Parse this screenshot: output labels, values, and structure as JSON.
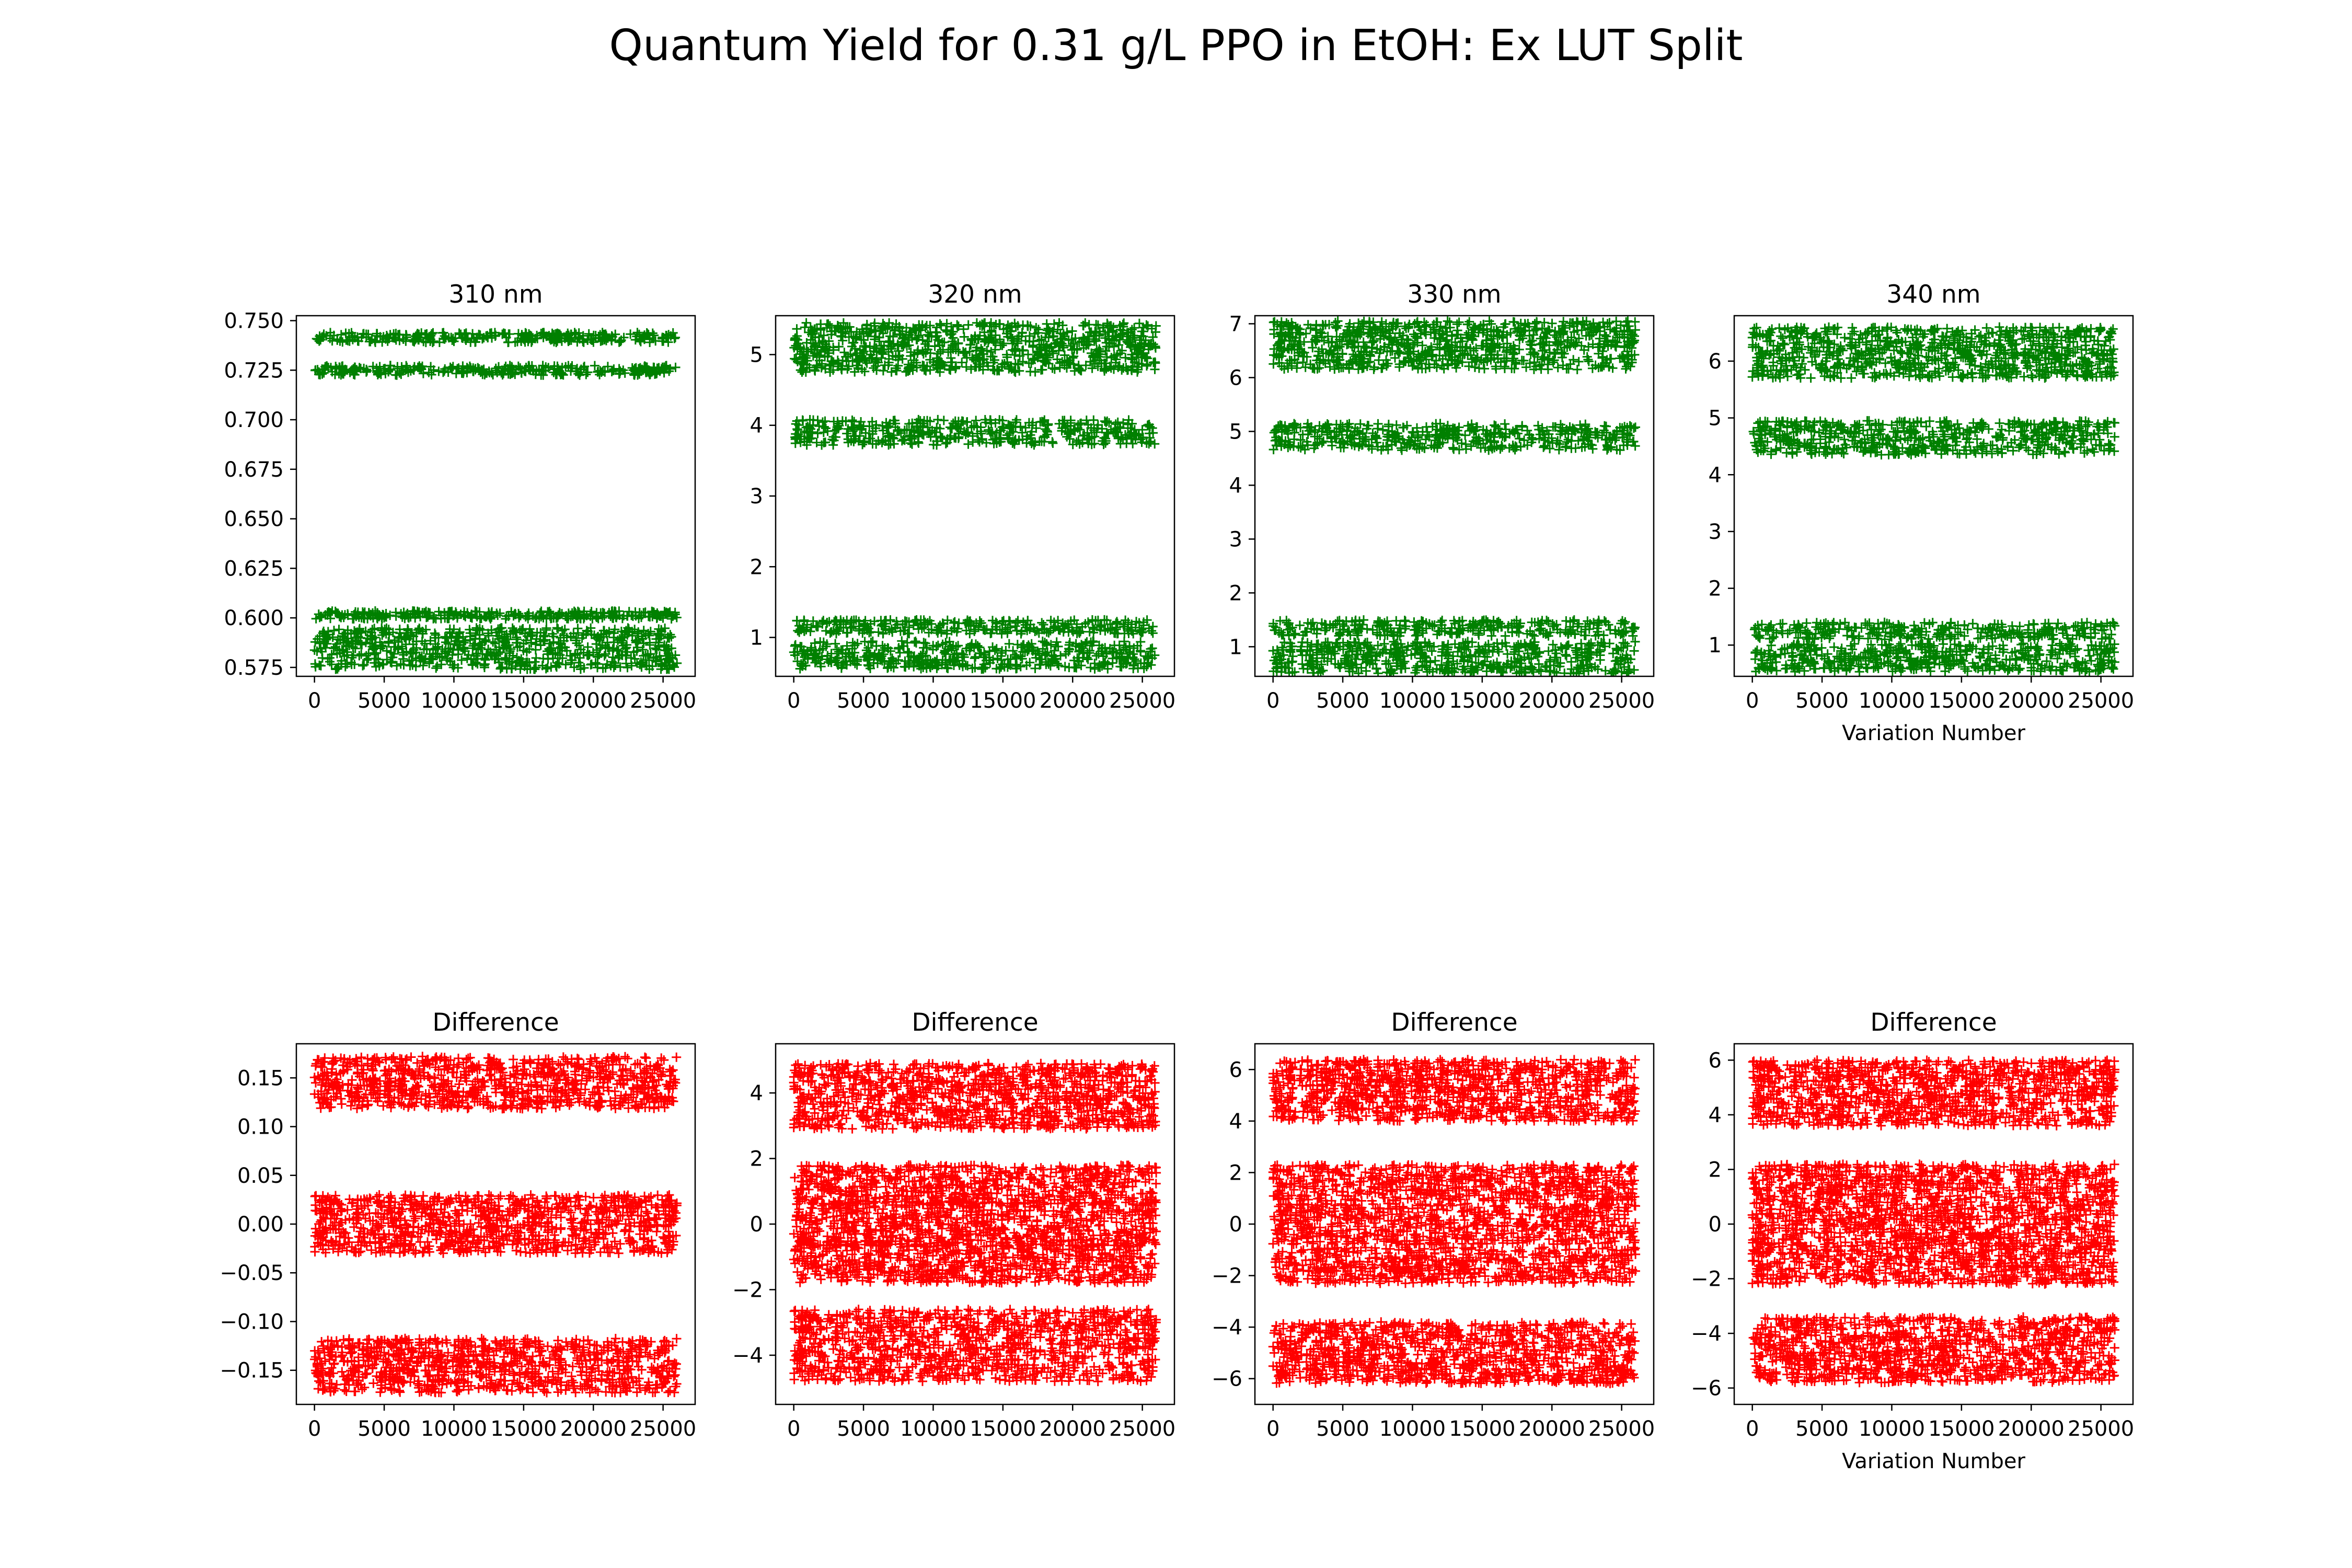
{
  "figure": {
    "title": "Quantum Yield for 0.31 g/L PPO in EtOH: Ex LUT Split"
  },
  "colors": {
    "yield": "#008000",
    "difference": "#ff0000",
    "axes": "#000000"
  },
  "chart_data": [
    {
      "type": "scatter",
      "marker": "+",
      "color": "#008000",
      "title": "310 nm",
      "xlabel": "",
      "ylabel": "",
      "xlim": [
        -1300,
        27300
      ],
      "ylim": [
        0.5705,
        0.7525
      ],
      "xticks": [
        0,
        5000,
        10000,
        15000,
        20000,
        25000
      ],
      "xtick_labels": [
        "0",
        "5000",
        "10000",
        "15000",
        "20000",
        "25000"
      ],
      "yticks": [
        0.575,
        0.6,
        0.625,
        0.65,
        0.675,
        0.7,
        0.725,
        0.75
      ],
      "ytick_labels": [
        "0.575",
        "0.600",
        "0.625",
        "0.650",
        "0.675",
        "0.700",
        "0.725",
        "0.750"
      ],
      "x_range": [
        0,
        26000
      ],
      "bands": [
        {
          "center": 0.7415,
          "half_width": 0.0025
        },
        {
          "center": 0.725,
          "half_width": 0.0025
        },
        {
          "center": 0.6015,
          "half_width": 0.002
        },
        {
          "center": 0.5845,
          "half_width": 0.0105
        }
      ]
    },
    {
      "type": "scatter",
      "marker": "+",
      "color": "#008000",
      "title": "320 nm",
      "xlabel": "",
      "ylabel": "",
      "xlim": [
        -1300,
        27300
      ],
      "ylim": [
        0.45,
        5.55
      ],
      "xticks": [
        0,
        5000,
        10000,
        15000,
        20000,
        25000
      ],
      "xtick_labels": [
        "0",
        "5000",
        "10000",
        "15000",
        "20000",
        "25000"
      ],
      "yticks": [
        1,
        2,
        3,
        4,
        5
      ],
      "ytick_labels": [
        "1",
        "2",
        "3",
        "4",
        "5"
      ],
      "x_range": [
        0,
        26000
      ],
      "bands": [
        {
          "center": 5.1,
          "half_width": 0.35
        },
        {
          "center": 3.9,
          "half_width": 0.18
        },
        {
          "center": 1.15,
          "half_width": 0.1
        },
        {
          "center": 0.75,
          "half_width": 0.2
        }
      ]
    },
    {
      "type": "scatter",
      "marker": "+",
      "color": "#008000",
      "title": "330 nm",
      "xlabel": "",
      "ylabel": "",
      "xlim": [
        -1300,
        27300
      ],
      "ylim": [
        0.45,
        7.15
      ],
      "xticks": [
        0,
        5000,
        10000,
        15000,
        20000,
        25000
      ],
      "xtick_labels": [
        "0",
        "5000",
        "10000",
        "15000",
        "20000",
        "25000"
      ],
      "yticks": [
        1,
        2,
        3,
        4,
        5,
        6,
        7
      ],
      "ytick_labels": [
        "1",
        "2",
        "3",
        "4",
        "5",
        "6",
        "7"
      ],
      "x_range": [
        0,
        26000
      ],
      "bands": [
        {
          "center": 6.6,
          "half_width": 0.45
        },
        {
          "center": 4.9,
          "half_width": 0.25
        },
        {
          "center": 1.35,
          "half_width": 0.15
        },
        {
          "center": 0.8,
          "half_width": 0.3
        }
      ]
    },
    {
      "type": "scatter",
      "marker": "+",
      "color": "#008000",
      "title": "340 nm",
      "xlabel": "Variation Number",
      "ylabel": "",
      "xlim": [
        -1300,
        27300
      ],
      "ylim": [
        0.45,
        6.8
      ],
      "xticks": [
        0,
        5000,
        10000,
        15000,
        20000,
        25000
      ],
      "xtick_labels": [
        "0",
        "5000",
        "10000",
        "15000",
        "20000",
        "25000"
      ],
      "yticks": [
        1,
        2,
        3,
        4,
        5,
        6
      ],
      "ytick_labels": [
        "1",
        "2",
        "3",
        "4",
        "5",
        "6"
      ],
      "x_range": [
        0,
        26000
      ],
      "bands": [
        {
          "center": 6.15,
          "half_width": 0.45
        },
        {
          "center": 4.65,
          "half_width": 0.3
        },
        {
          "center": 1.25,
          "half_width": 0.15
        },
        {
          "center": 0.78,
          "half_width": 0.25
        }
      ]
    },
    {
      "type": "scatter",
      "marker": "+",
      "color": "#ff0000",
      "title": "Difference",
      "xlabel": "",
      "ylabel": "",
      "xlim": [
        -1300,
        27300
      ],
      "ylim": [
        -0.185,
        0.185
      ],
      "xticks": [
        0,
        5000,
        10000,
        15000,
        20000,
        25000
      ],
      "xtick_labels": [
        "0",
        "5000",
        "10000",
        "15000",
        "20000",
        "25000"
      ],
      "yticks": [
        -0.15,
        -0.1,
        -0.05,
        0,
        0.05,
        0.1,
        0.15
      ],
      "ytick_labels": [
        "−0.15",
        "−0.10",
        "−0.05",
        "0.00",
        "0.05",
        "0.10",
        "0.15"
      ],
      "x_range": [
        0,
        26000
      ],
      "bands": [
        {
          "center": 0.145,
          "half_width": 0.027
        },
        {
          "center": 0.0,
          "half_width": 0.03
        },
        {
          "center": -0.145,
          "half_width": 0.028
        }
      ]
    },
    {
      "type": "scatter",
      "marker": "+",
      "color": "#ff0000",
      "title": "Difference",
      "xlabel": "",
      "ylabel": "",
      "xlim": [
        -1300,
        27300
      ],
      "ylim": [
        -5.5,
        5.5
      ],
      "xticks": [
        0,
        5000,
        10000,
        15000,
        20000,
        25000
      ],
      "xtick_labels": [
        "0",
        "5000",
        "10000",
        "15000",
        "20000",
        "25000"
      ],
      "yticks": [
        -4,
        -2,
        0,
        2,
        4
      ],
      "ytick_labels": [
        "−4",
        "−2",
        "0",
        "2",
        "4"
      ],
      "x_range": [
        0,
        26000
      ],
      "bands": [
        {
          "center": 3.9,
          "half_width": 1.0
        },
        {
          "center": 1.2,
          "half_width": 0.6
        },
        {
          "center": 0.0,
          "half_width": 0.7
        },
        {
          "center": -1.2,
          "half_width": 0.6
        },
        {
          "center": -3.7,
          "half_width": 1.1
        }
      ]
    },
    {
      "type": "scatter",
      "marker": "+",
      "color": "#ff0000",
      "title": "Difference",
      "xlabel": "",
      "ylabel": "",
      "xlim": [
        -1300,
        27300
      ],
      "ylim": [
        -7.0,
        7.0
      ],
      "xticks": [
        0,
        5000,
        10000,
        15000,
        20000,
        25000
      ],
      "xtick_labels": [
        "0",
        "5000",
        "10000",
        "15000",
        "20000",
        "25000"
      ],
      "yticks": [
        -6,
        -4,
        -2,
        0,
        2,
        4,
        6
      ],
      "ytick_labels": [
        "−6",
        "−4",
        "−2",
        "0",
        "2",
        "4",
        "6"
      ],
      "x_range": [
        0,
        26000
      ],
      "bands": [
        {
          "center": 5.2,
          "half_width": 1.2
        },
        {
          "center": 1.6,
          "half_width": 0.7
        },
        {
          "center": 0.0,
          "half_width": 0.8
        },
        {
          "center": -1.6,
          "half_width": 0.7
        },
        {
          "center": -5.0,
          "half_width": 1.2
        }
      ]
    },
    {
      "type": "scatter",
      "marker": "+",
      "color": "#ff0000",
      "title": "Difference",
      "xlabel": "Variation Number",
      "ylabel": "",
      "xlim": [
        -1300,
        27300
      ],
      "ylim": [
        -6.6,
        6.6
      ],
      "xticks": [
        0,
        5000,
        10000,
        15000,
        20000,
        25000
      ],
      "xtick_labels": [
        "0",
        "5000",
        "10000",
        "15000",
        "20000",
        "25000"
      ],
      "yticks": [
        -6,
        -4,
        -2,
        0,
        2,
        4,
        6
      ],
      "ytick_labels": [
        "−6",
        "−4",
        "−2",
        "0",
        "2",
        "4",
        "6"
      ],
      "x_range": [
        0,
        26000
      ],
      "bands": [
        {
          "center": 4.8,
          "half_width": 1.2
        },
        {
          "center": 1.5,
          "half_width": 0.7
        },
        {
          "center": 0.0,
          "half_width": 0.8
        },
        {
          "center": -1.5,
          "half_width": 0.7
        },
        {
          "center": -4.6,
          "half_width": 1.2
        }
      ]
    }
  ]
}
